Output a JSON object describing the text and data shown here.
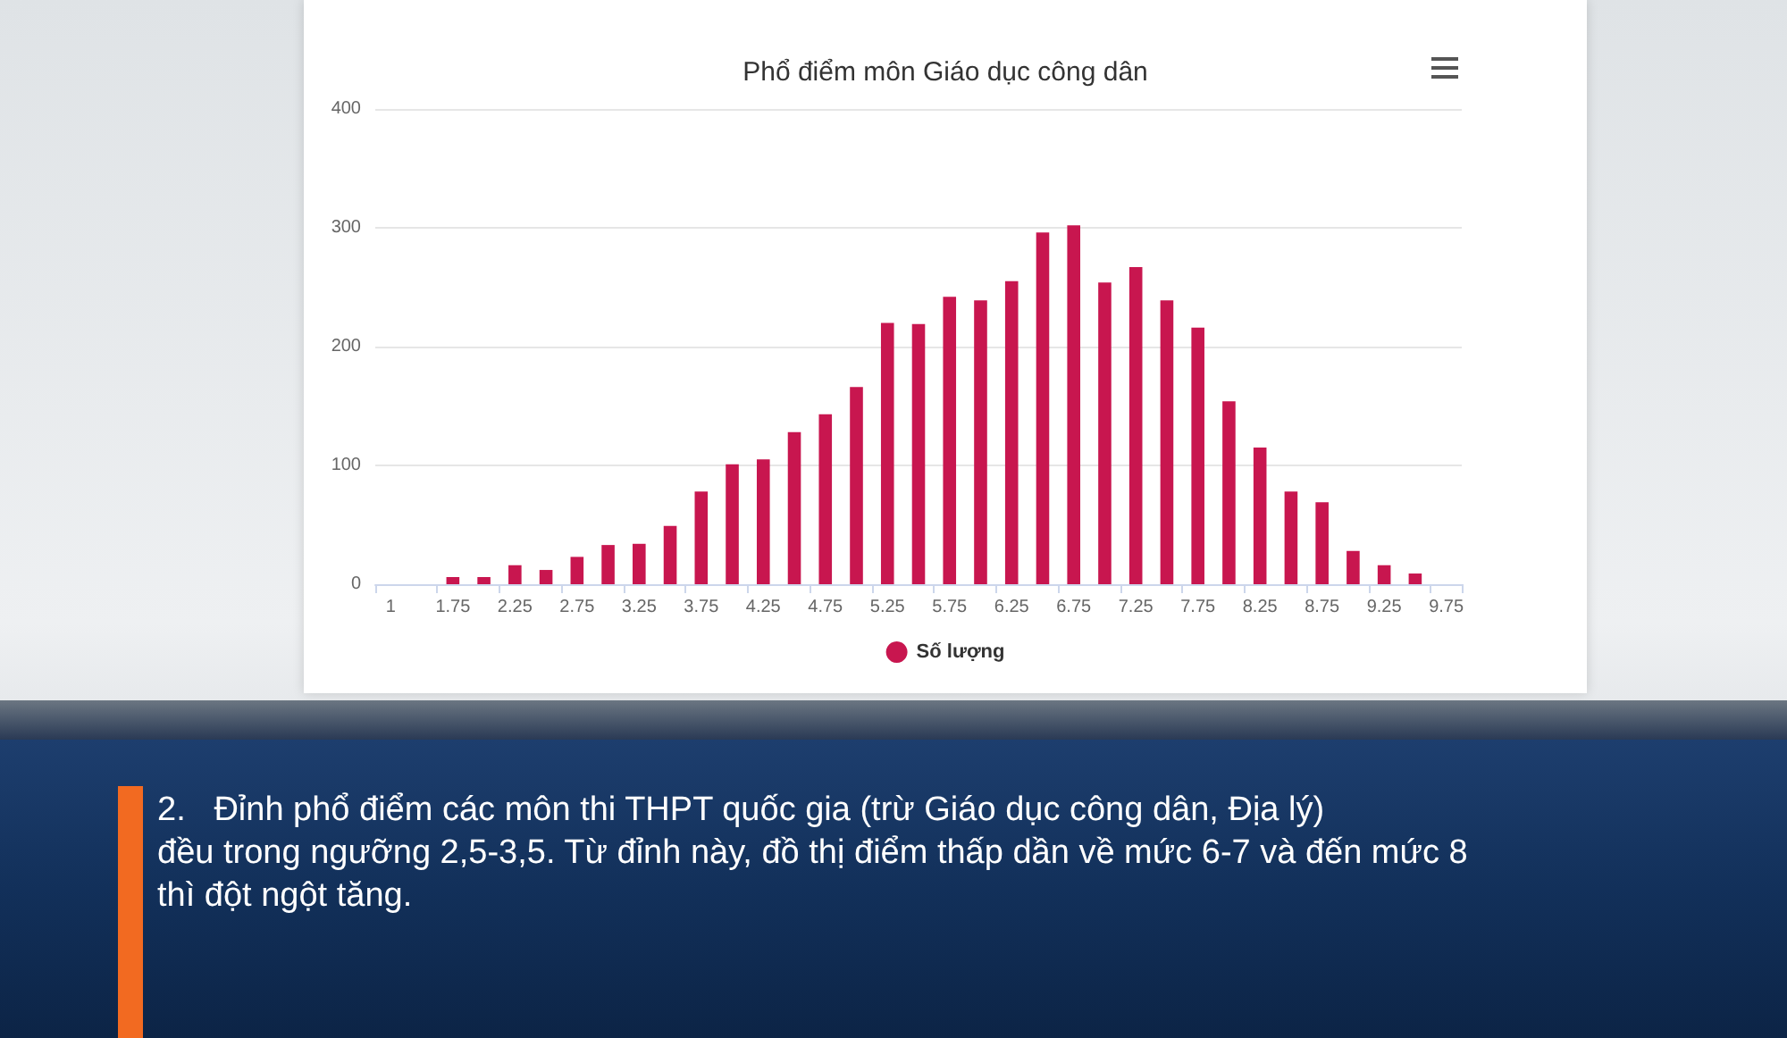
{
  "chart_data": {
    "type": "bar",
    "title": "Phổ điểm môn Giáo dục công dân",
    "categories": [
      "1",
      null,
      "1.75",
      null,
      "2.25",
      null,
      "2.75",
      null,
      "3.25",
      null,
      "3.75",
      null,
      "4.25",
      null,
      "4.75",
      null,
      "5.25",
      null,
      "5.75",
      null,
      "6.25",
      null,
      "6.75",
      null,
      "7.25",
      null,
      "7.75",
      null,
      "8.25",
      null,
      "8.75",
      null,
      "9.25",
      null,
      "9.75"
    ],
    "series": [
      {
        "name": "Số lượng",
        "color": "#c8164f",
        "values": [
          0,
          0,
          6,
          6,
          16,
          12,
          23,
          33,
          34,
          49,
          78,
          101,
          105,
          128,
          143,
          166,
          220,
          219,
          242,
          239,
          255,
          296,
          302,
          254,
          267,
          239,
          216,
          154,
          115,
          78,
          69,
          28,
          16,
          9,
          0
        ]
      }
    ],
    "ylim": [
      0,
      400
    ],
    "yticks": [
      0,
      100,
      200,
      300,
      400
    ],
    "grid": "y",
    "legend": "bottom",
    "annotations": [
      "2.\tĐỉnh phổ điểm các môn thi THPT quốc gia (trừ Giáo dục công dân, Địa lý)\nđều trong ngưỡng 2,5-3,5. Từ đỉnh này, đồ thị điểm thấp dần về mức 6-7 và đến mức 8\nthì đột ngột tăng."
    ]
  }
}
